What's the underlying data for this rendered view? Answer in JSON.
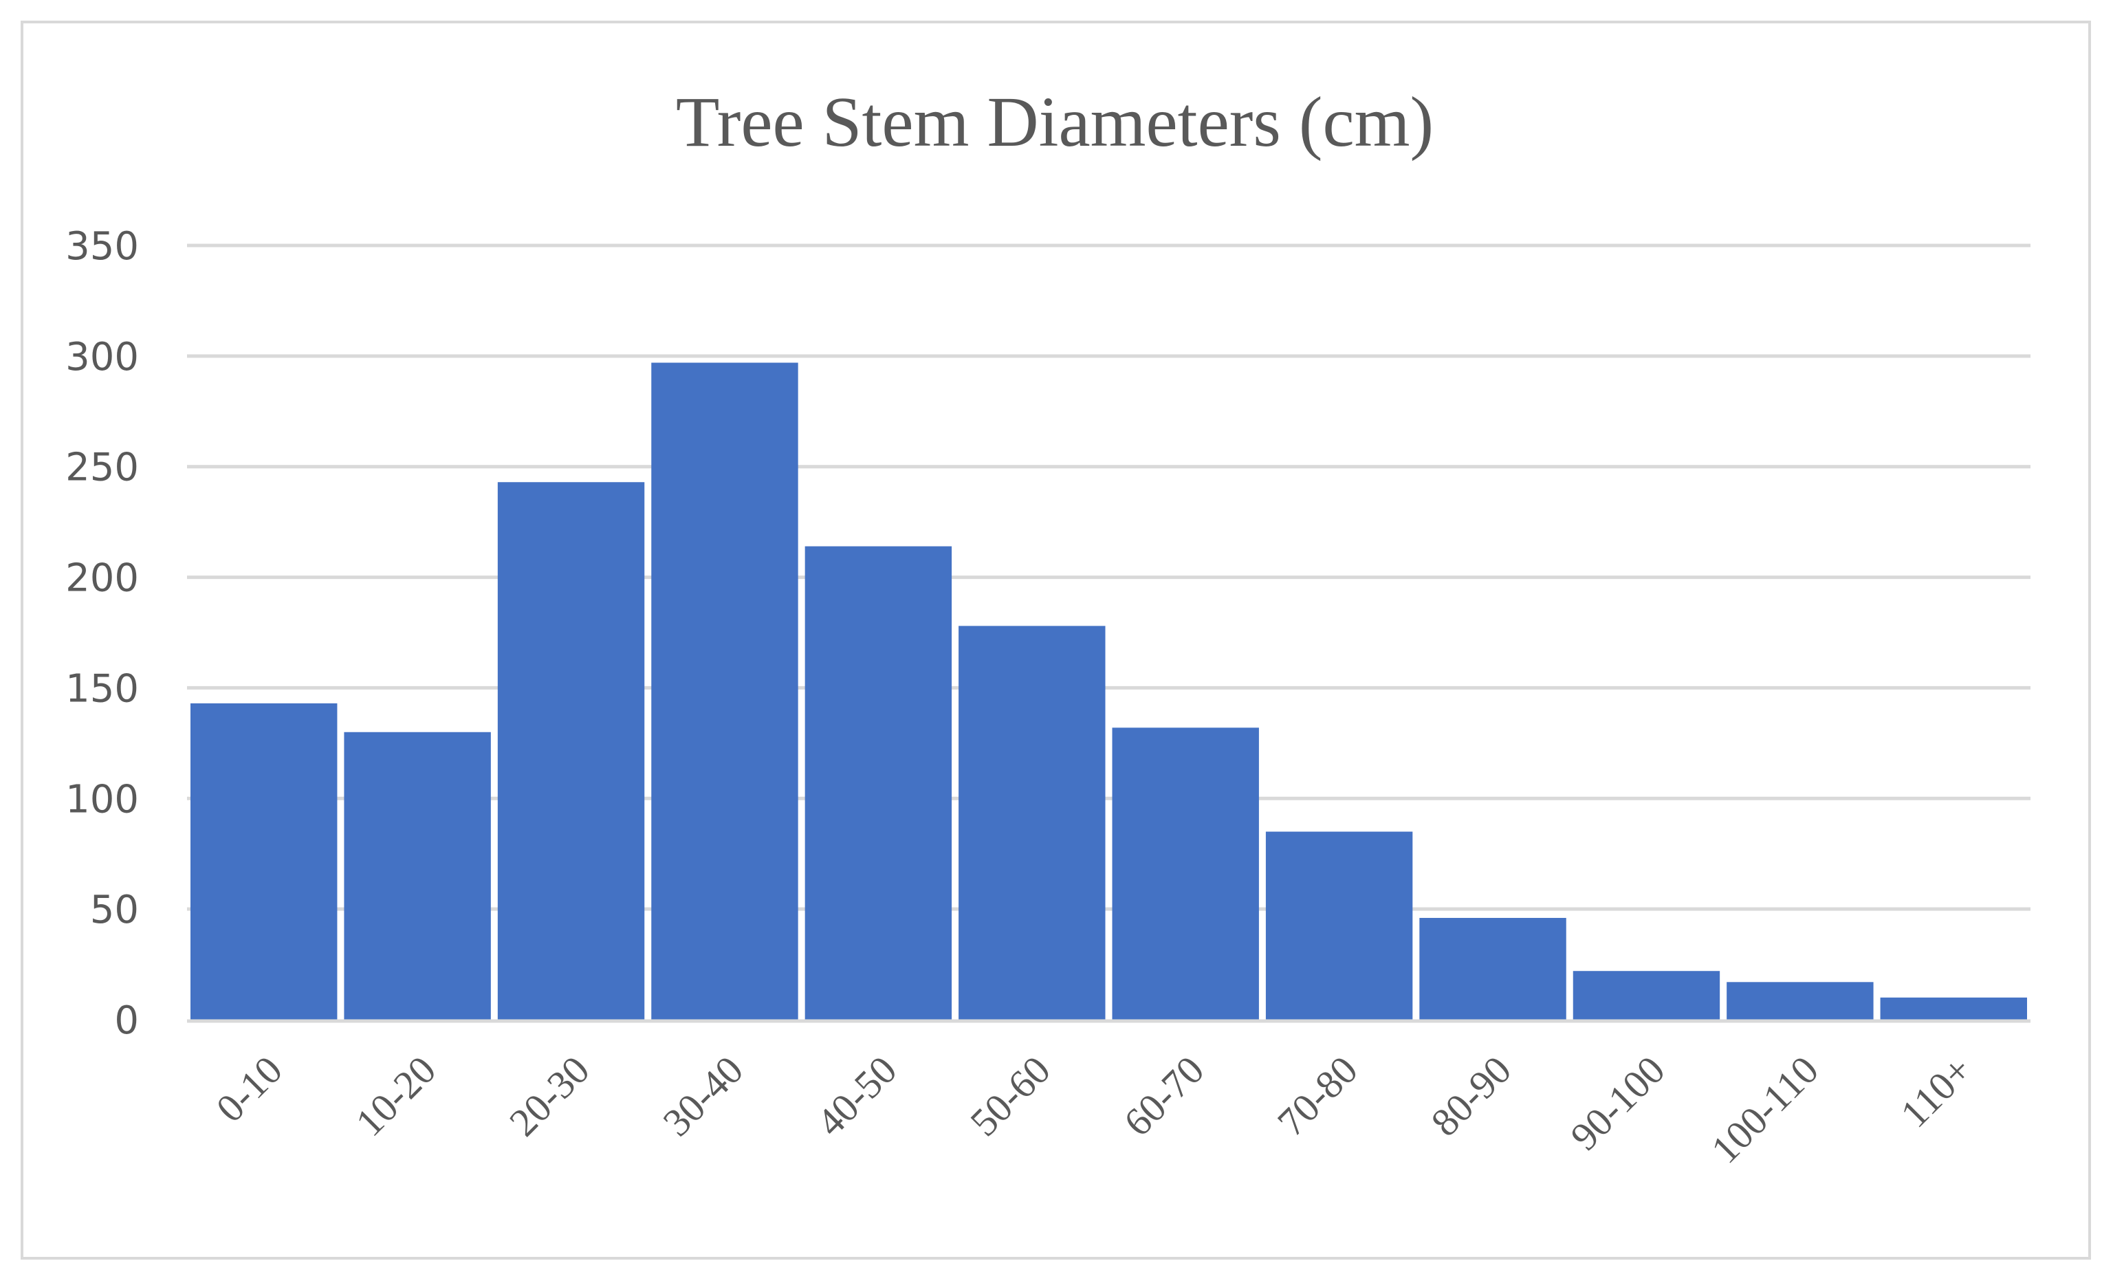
{
  "chart_data": {
    "type": "bar",
    "title": "Tree Stem Diameters (cm)",
    "xlabel": "",
    "ylabel": "",
    "categories": [
      "0-10",
      "10-20",
      "20-30",
      "30-40",
      "40-50",
      "50-60",
      "60-70",
      "70-80",
      "80-90",
      "90-100",
      "100-110",
      "110+"
    ],
    "values": [
      143,
      130,
      243,
      297,
      214,
      178,
      132,
      85,
      46,
      22,
      17,
      10
    ],
    "ylim": [
      0,
      350
    ],
    "yticks": [
      0,
      50,
      100,
      150,
      200,
      250,
      300,
      350
    ],
    "grid": true,
    "legend": "none",
    "bar_color": "#4472c4",
    "gridline_color": "#d9d9d9",
    "text_color": "#595959"
  }
}
